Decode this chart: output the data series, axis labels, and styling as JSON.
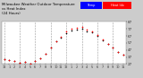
{
  "title": "Milwaukee Weather Outdoor Temperature\nvs Heat Index\n(24 Hours)",
  "bg_color": "#cccccc",
  "plot_bg_color": "#ffffff",
  "hours": [
    0,
    1,
    2,
    3,
    4,
    5,
    6,
    7,
    8,
    9,
    10,
    11,
    12,
    13,
    14,
    15,
    16,
    17,
    18,
    19,
    20,
    21,
    22,
    23
  ],
  "temp": [
    34,
    32,
    31,
    29,
    30,
    28,
    31,
    35,
    42,
    51,
    59,
    65,
    71,
    75,
    76,
    77,
    74,
    72,
    67,
    61,
    55,
    50,
    44,
    40
  ],
  "heat_index": [
    34,
    32,
    31,
    29,
    30,
    28,
    31,
    35,
    42,
    51,
    60,
    66,
    73,
    77,
    79,
    80,
    76,
    74,
    68,
    62,
    55,
    50,
    44,
    40
  ],
  "temp_color": "#000000",
  "hi_color": "#ff0000",
  "legend_temp_color": "#0000ff",
  "legend_hi_color": "#ff0000",
  "ylim": [
    27,
    87
  ],
  "yticks": [
    27,
    37,
    47,
    57,
    67,
    77,
    87
  ],
  "ytick_labels": [
    "27",
    "37",
    "47",
    "57",
    "67",
    "77",
    "87"
  ],
  "xtick_positions": [
    0,
    1,
    2,
    3,
    4,
    5,
    6,
    7,
    8,
    9,
    10,
    11,
    12,
    13,
    14,
    15,
    16,
    17,
    18,
    19,
    20,
    21,
    22,
    23
  ],
  "xtick_labels": [
    "12",
    "1",
    "2",
    "3",
    "4",
    "5",
    "6",
    "7",
    "8",
    "9",
    "10",
    "11",
    "12",
    "1",
    "2",
    "3",
    "4",
    "5",
    "6",
    "7",
    "8",
    "9",
    "10",
    "11"
  ],
  "grid_positions": [
    0,
    3,
    6,
    9,
    12,
    15,
    18,
    21
  ],
  "legend_temp_label": "Temp",
  "legend_hi_label": "Heat Idx"
}
